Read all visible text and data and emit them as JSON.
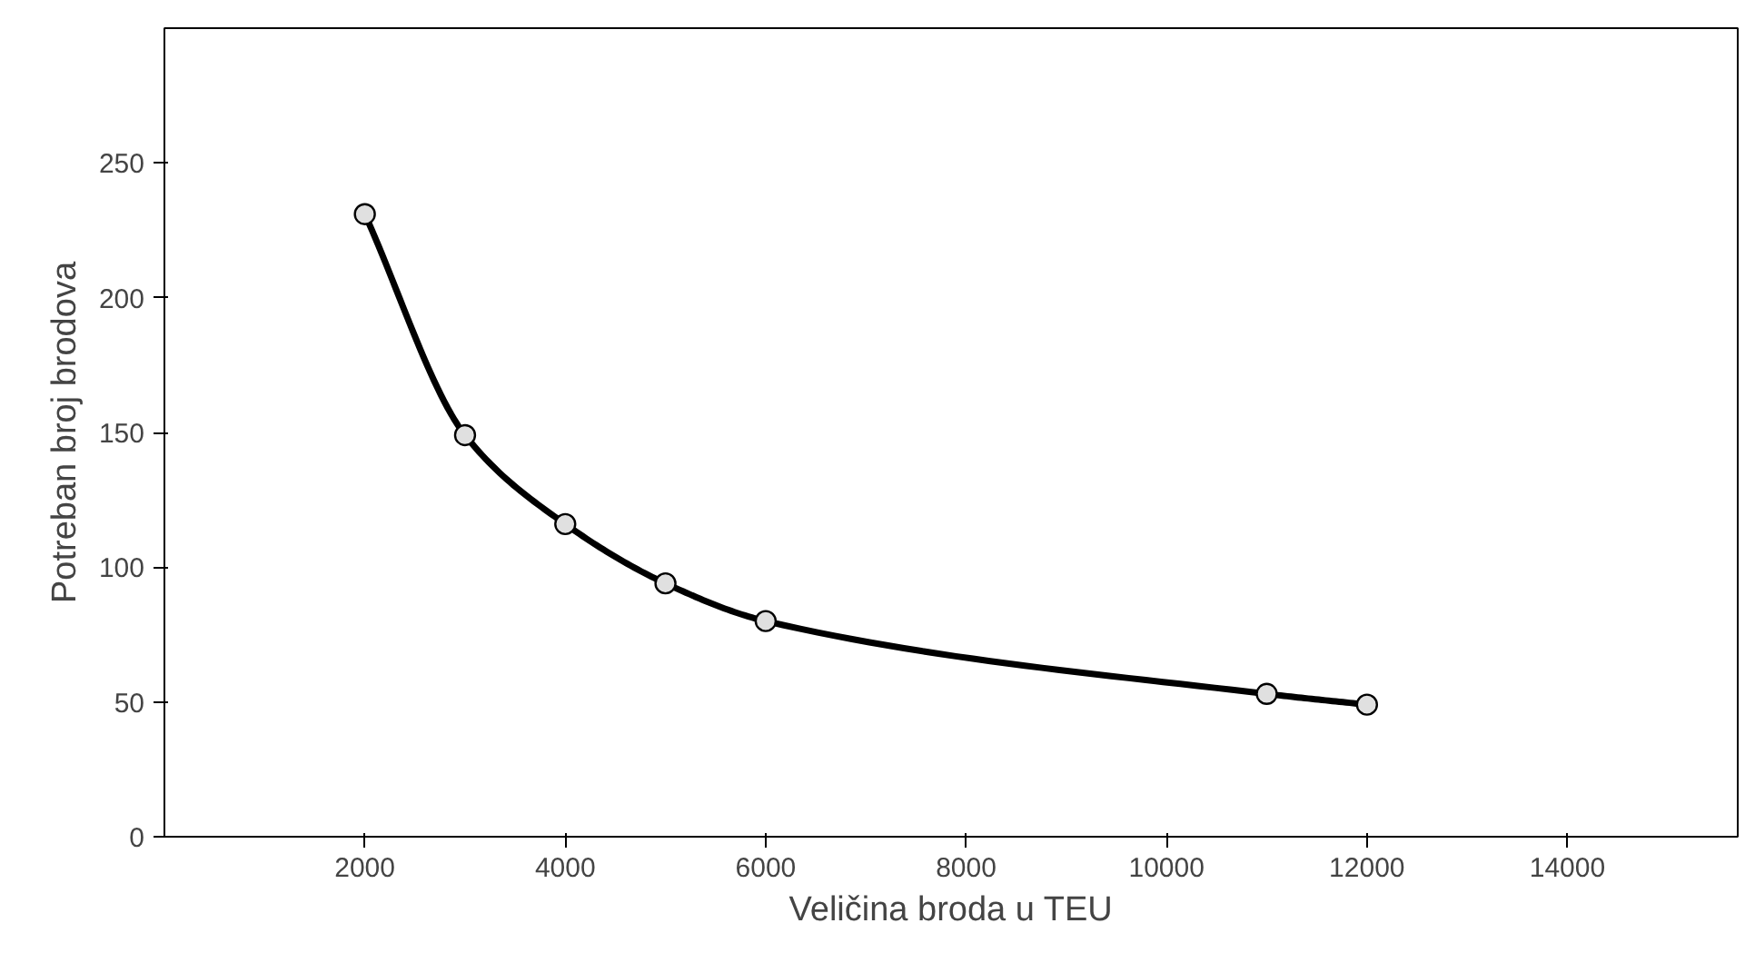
{
  "chart_data": {
    "type": "line",
    "xlabel": "Veličina broda u TEU",
    "ylabel": "Potreban broj brodova",
    "x": [
      2000,
      3000,
      4000,
      5000,
      6000,
      11000,
      12000
    ],
    "series": [
      {
        "color": "#000000",
        "values": [
          231,
          149,
          116,
          94,
          80,
          53,
          49
        ]
      }
    ],
    "marker": "circle",
    "line_style": "solid",
    "grid": false,
    "xlim": [
      0,
      15700
    ],
    "ylim": [
      0,
      300
    ],
    "xticks": [
      2000,
      4000,
      6000,
      8000,
      10000,
      12000,
      14000
    ],
    "yticks": [
      0,
      50,
      100,
      150,
      200,
      250
    ]
  }
}
